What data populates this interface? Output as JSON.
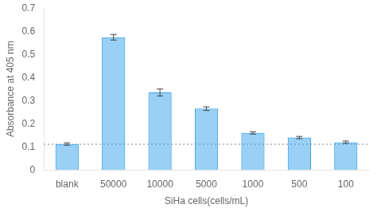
{
  "chart_data": {
    "type": "bar",
    "categories": [
      "blank",
      "50000",
      "10000",
      "5000",
      "1000",
      "500",
      "100"
    ],
    "values": [
      0.112,
      0.574,
      0.335,
      0.265,
      0.16,
      0.14,
      0.12
    ],
    "errors": [
      0.005,
      0.012,
      0.015,
      0.008,
      0.005,
      0.005,
      0.005
    ],
    "hline": 0.111,
    "xlabel": "SiHa cells(cells/mL)",
    "ylabel": "Absorbance at 405 nm",
    "ylim": [
      0,
      0.7
    ],
    "yticks": [
      0,
      0.1,
      0.2,
      0.3,
      0.4,
      0.5,
      0.6,
      0.7
    ],
    "grid": false
  }
}
